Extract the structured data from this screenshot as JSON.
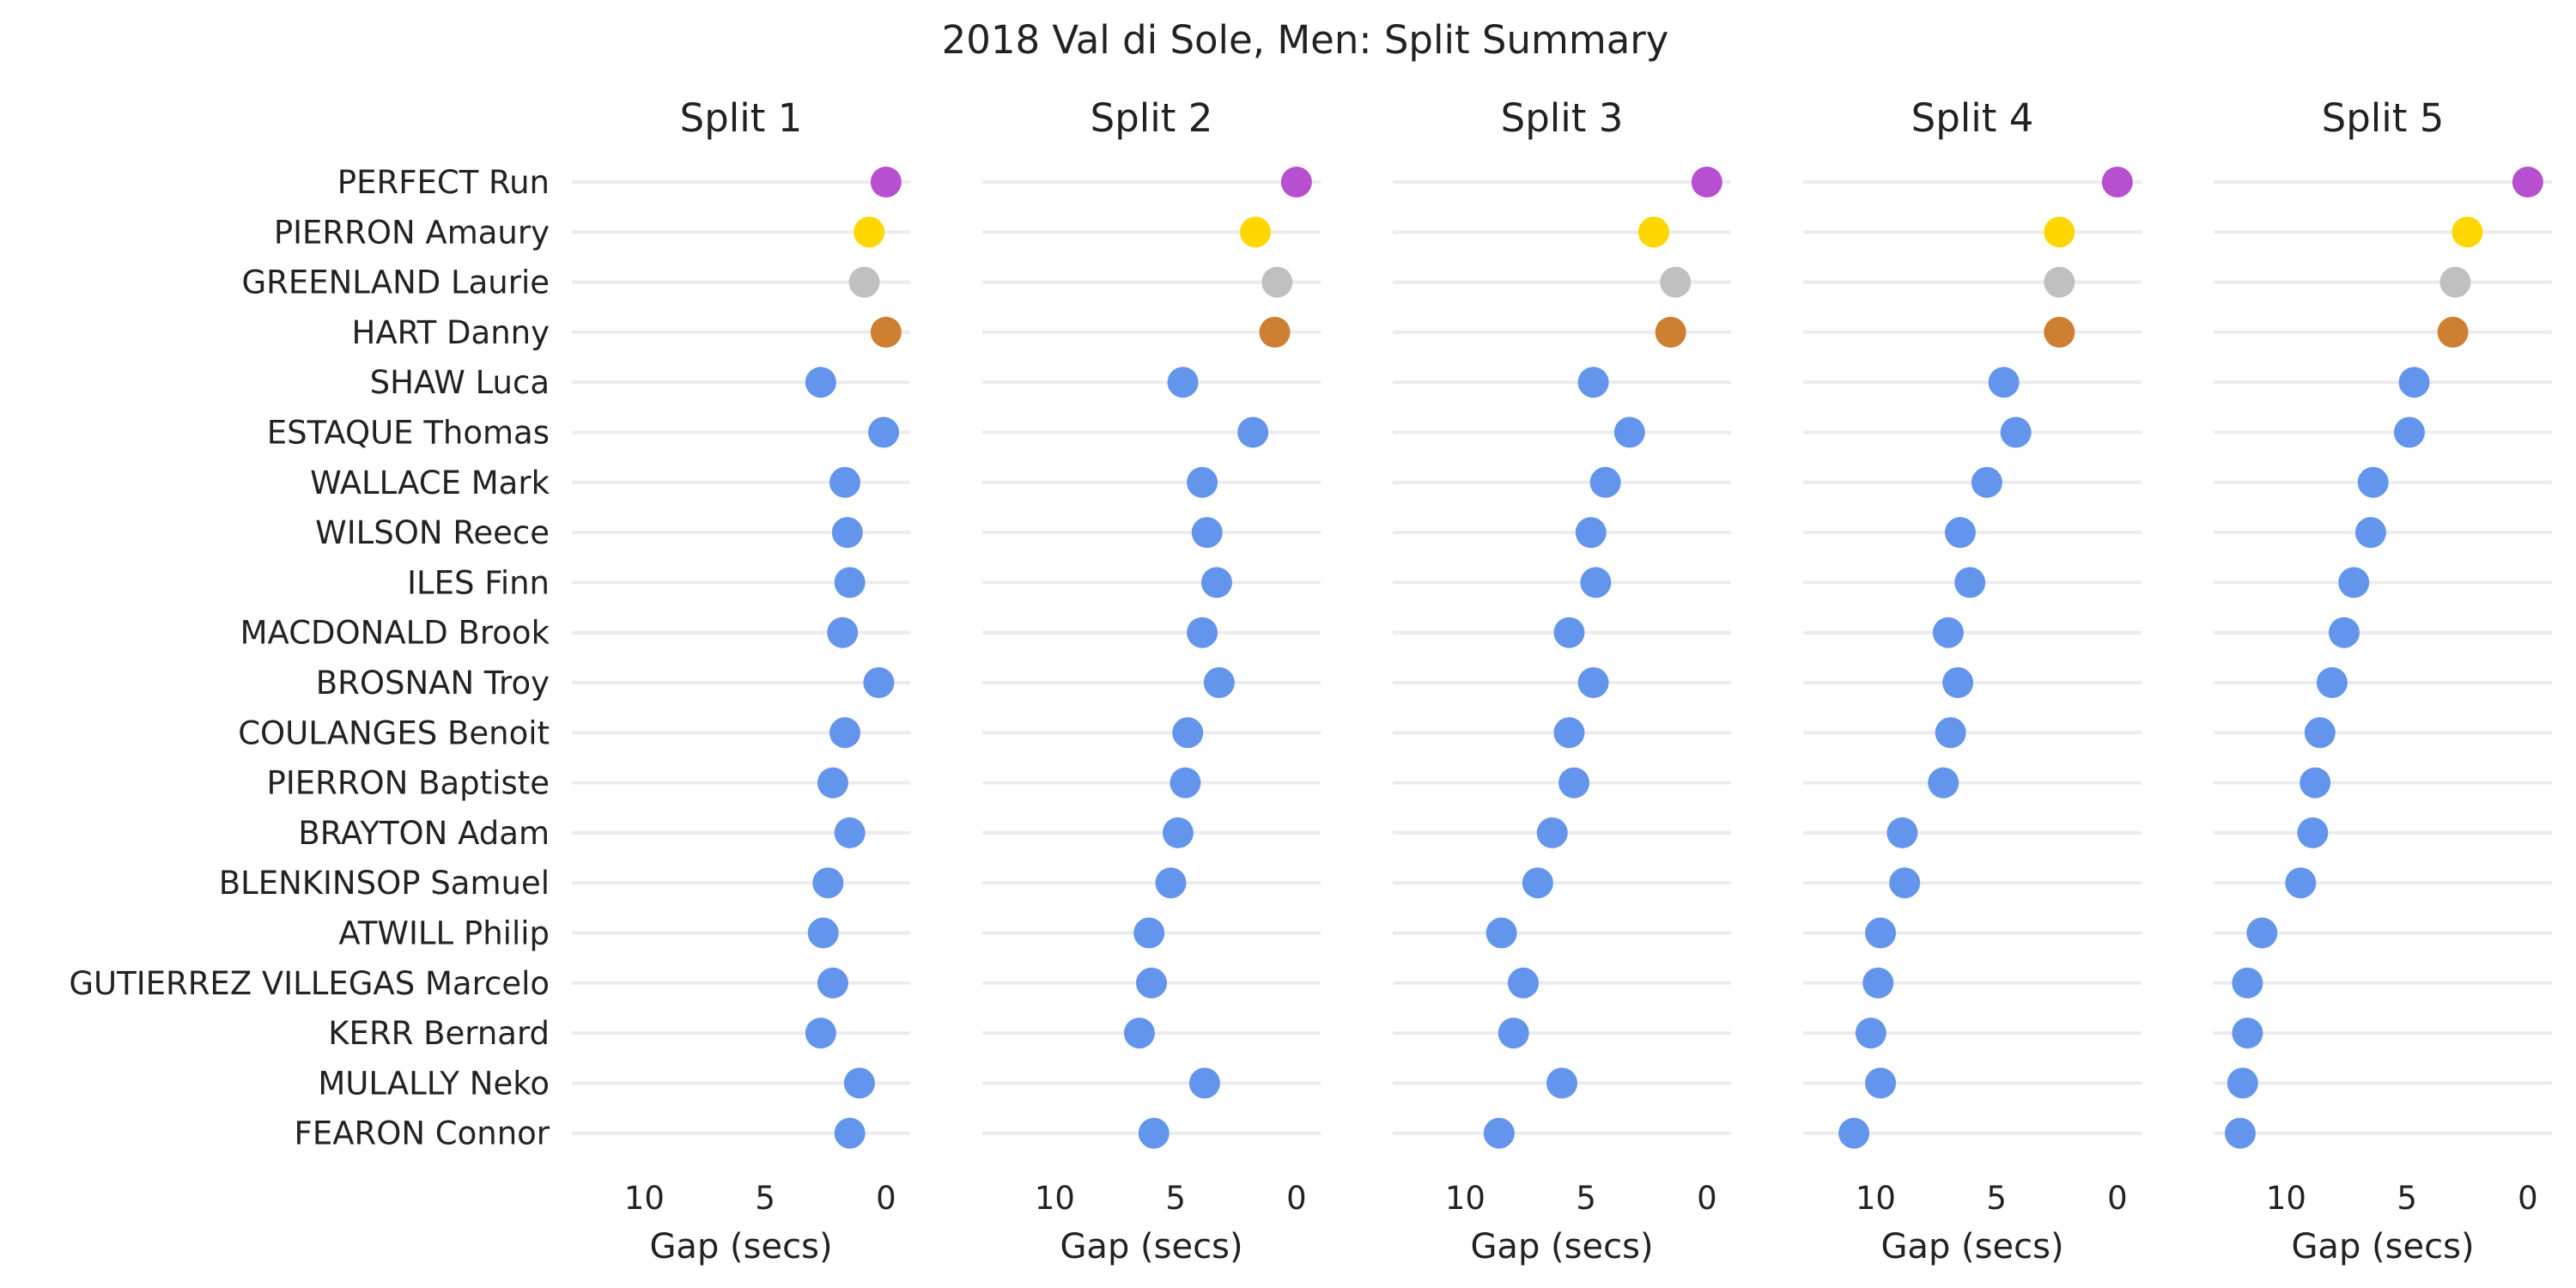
{
  "chart_data": {
    "type": "scatter",
    "title": "2018 Val di Sole, Men: Split Summary",
    "xlabel": "Gap (secs)",
    "xlim": [
      13,
      -1
    ],
    "x_reversed": true,
    "x_ticks": [
      10,
      5,
      0
    ],
    "grid": "horizontal",
    "riders": [
      "PERFECT Run",
      "PIERRON Amaury",
      "GREENLAND Laurie",
      "HART Danny",
      "SHAW Luca",
      "ESTAQUE Thomas",
      "WALLACE Mark",
      "WILSON Reece",
      "ILES Finn",
      "MACDONALD Brook",
      "BROSNAN Troy",
      "COULANGES Benoit",
      "PIERRON Baptiste",
      "BRAYTON Adam",
      "BLENKINSOP Samuel",
      "ATWILL Philip",
      "GUTIERREZ VILLEGAS Marcelo",
      "KERR Bernard",
      "MULALLY Neko",
      "FEARON Connor"
    ],
    "colors": {
      "perfect": "#b74fd1",
      "gold": "#ffd700",
      "silver": "#c0c0c0",
      "bronze": "#cd7f32",
      "other": "#6495ed"
    },
    "point_colors": [
      "perfect",
      "gold",
      "silver",
      "bronze",
      "other",
      "other",
      "other",
      "other",
      "other",
      "other",
      "other",
      "other",
      "other",
      "other",
      "other",
      "other",
      "other",
      "other",
      "other",
      "other"
    ],
    "panels": [
      {
        "title": "Split 1",
        "values": [
          0,
          0.7,
          0.9,
          0,
          2.7,
          0.1,
          1.7,
          1.6,
          1.5,
          1.8,
          0.3,
          1.7,
          2.2,
          1.5,
          2.4,
          2.6,
          2.2,
          2.7,
          1.1,
          1.5
        ]
      },
      {
        "title": "Split 2",
        "values": [
          0,
          1.7,
          0.8,
          0.9,
          4.7,
          1.8,
          3.9,
          3.7,
          3.3,
          3.9,
          3.2,
          4.5,
          4.6,
          4.9,
          5.2,
          6.1,
          6.0,
          6.5,
          3.8,
          5.9
        ]
      },
      {
        "title": "Split 3",
        "values": [
          0,
          2.2,
          1.3,
          1.5,
          4.7,
          3.2,
          4.2,
          4.8,
          4.6,
          5.7,
          4.7,
          5.7,
          5.5,
          6.4,
          7.0,
          8.5,
          7.6,
          8.0,
          6.0,
          8.6
        ]
      },
      {
        "title": "Split 4",
        "values": [
          0,
          2.4,
          2.4,
          2.4,
          4.7,
          4.2,
          5.4,
          6.5,
          6.1,
          7.0,
          6.6,
          6.9,
          7.2,
          8.9,
          8.8,
          9.8,
          9.9,
          10.2,
          9.8,
          10.9
        ]
      },
      {
        "title": "Split 5",
        "values": [
          0,
          2.5,
          3.0,
          3.1,
          4.7,
          4.9,
          6.4,
          6.5,
          7.2,
          7.6,
          8.1,
          8.6,
          8.8,
          8.9,
          9.4,
          11.0,
          11.6,
          11.6,
          11.8,
          11.9
        ]
      }
    ]
  }
}
